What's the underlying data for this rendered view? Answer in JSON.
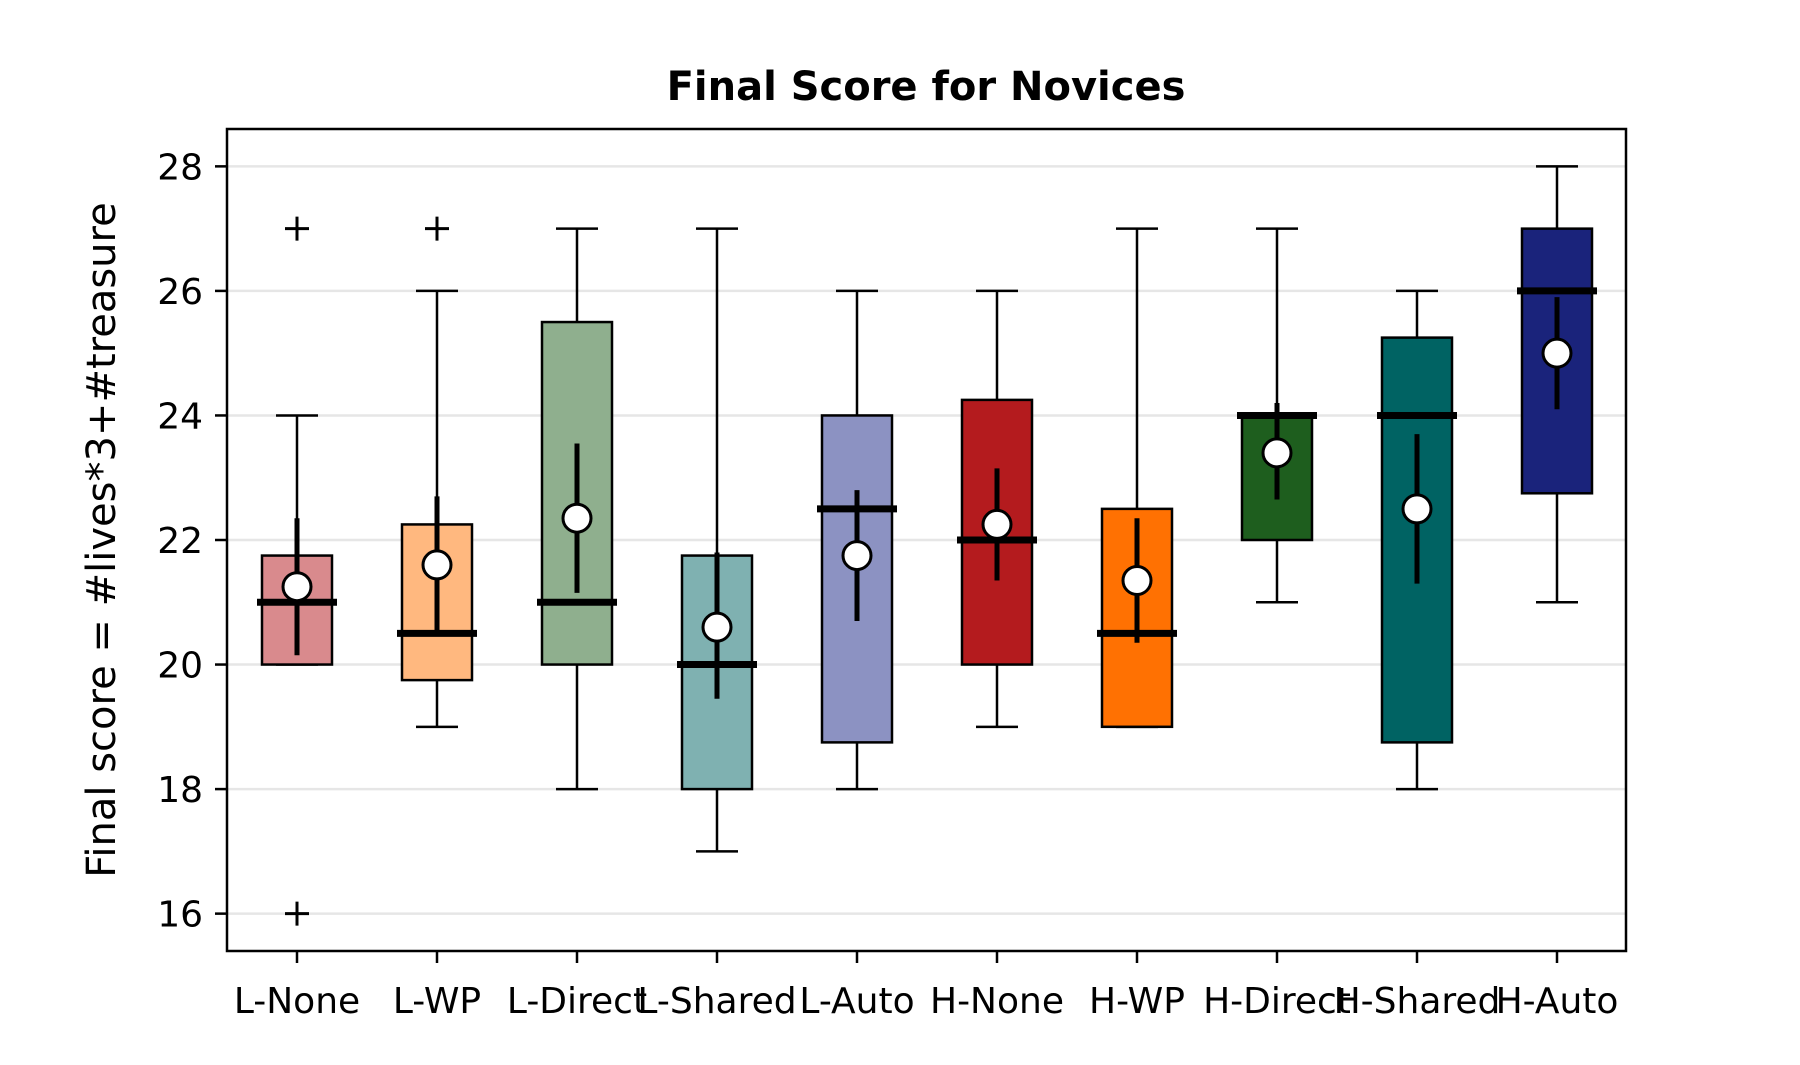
{
  "chart_data": {
    "type": "box",
    "title": "Final Score for Novices",
    "xlabel": "",
    "ylabel": "Final score = #lives*3+#treasure",
    "ylim": [
      15.4,
      28.6
    ],
    "yticks": [
      16,
      18,
      20,
      22,
      24,
      26,
      28
    ],
    "grid": "horizontal",
    "categories": [
      "L-None",
      "L-WP",
      "L-Direct",
      "L-Shared",
      "L-Auto",
      "H-None",
      "H-WP",
      "H-Direct",
      "H-Shared",
      "H-Auto"
    ],
    "boxes": [
      {
        "category": "L-None",
        "color": "#d98a8d",
        "whisker_low": 20,
        "q1": 20,
        "median": 21,
        "q3": 21.75,
        "whisker_high": 24,
        "mean": 21.25,
        "ci_low": 20.15,
        "ci_high": 22.35,
        "outliers": [
          27,
          16
        ]
      },
      {
        "category": "L-WP",
        "color": "#ffb87f",
        "whisker_low": 19,
        "q1": 19.75,
        "median": 20.5,
        "q3": 22.25,
        "whisker_high": 26,
        "mean": 21.6,
        "ci_low": 20.5,
        "ci_high": 22.7,
        "outliers": [
          27
        ]
      },
      {
        "category": "L-Direct",
        "color": "#8faf8e",
        "whisker_low": 18,
        "q1": 20,
        "median": 21,
        "q3": 25.5,
        "whisker_high": 27,
        "mean": 22.35,
        "ci_low": 21.15,
        "ci_high": 23.55,
        "outliers": []
      },
      {
        "category": "L-Shared",
        "color": "#7fb1b1",
        "whisker_low": 17,
        "q1": 18,
        "median": 20,
        "q3": 21.75,
        "whisker_high": 27,
        "mean": 20.6,
        "ci_low": 19.45,
        "ci_high": 21.8,
        "outliers": []
      },
      {
        "category": "L-Auto",
        "color": "#8c92c2",
        "whisker_low": 18,
        "q1": 18.75,
        "median": 22.5,
        "q3": 24,
        "whisker_high": 26,
        "mean": 21.75,
        "ci_low": 20.7,
        "ci_high": 22.8,
        "outliers": []
      },
      {
        "category": "H-None",
        "color": "#b41b1e",
        "whisker_low": 19,
        "q1": 20,
        "median": 22,
        "q3": 24.25,
        "whisker_high": 26,
        "mean": 22.25,
        "ci_low": 21.35,
        "ci_high": 23.15,
        "outliers": []
      },
      {
        "category": "H-WP",
        "color": "#ff7102",
        "whisker_low": 19,
        "q1": 19,
        "median": 20.5,
        "q3": 22.5,
        "whisker_high": 27,
        "mean": 21.35,
        "ci_low": 20.35,
        "ci_high": 22.35,
        "outliers": []
      },
      {
        "category": "H-Direct",
        "color": "#1e5e1e",
        "whisker_low": 21,
        "q1": 22,
        "median": 24,
        "q3": 24,
        "whisker_high": 27,
        "mean": 23.4,
        "ci_low": 22.65,
        "ci_high": 24.2,
        "outliers": []
      },
      {
        "category": "H-Shared",
        "color": "#006363",
        "whisker_low": 18,
        "q1": 18.75,
        "median": 24,
        "q3": 25.25,
        "whisker_high": 26,
        "mean": 22.5,
        "ci_low": 21.3,
        "ci_high": 23.7,
        "outliers": []
      },
      {
        "category": "H-Auto",
        "color": "#1a237b",
        "whisker_low": 21,
        "q1": 22.75,
        "median": 26,
        "q3": 27,
        "whisker_high": 28,
        "mean": 25,
        "ci_low": 24.1,
        "ci_high": 25.9,
        "outliers": []
      }
    ]
  }
}
